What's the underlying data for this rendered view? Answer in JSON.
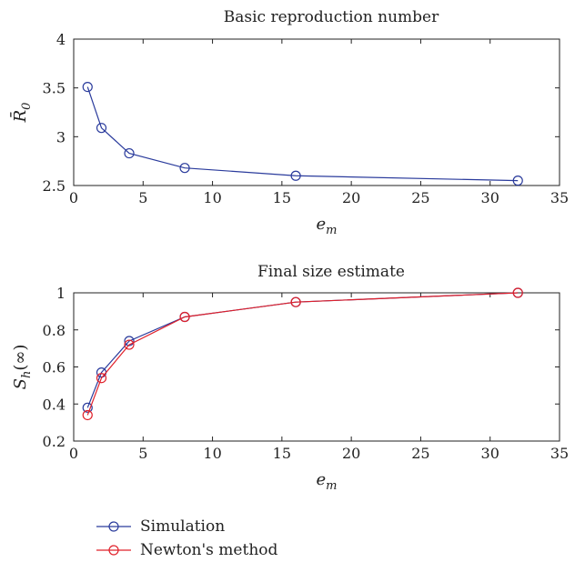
{
  "colors": {
    "simulation": "#2a3b9c",
    "newton": "#e0202a",
    "axis": "#222222"
  },
  "legend": {
    "simulation_label": "Simulation",
    "newton_label": "Newton's method"
  },
  "chart_data": [
    {
      "type": "line",
      "title": "Basic reproduction number",
      "xlabel": "e_m",
      "ylabel": "R̄_0",
      "xlim": [
        0,
        35
      ],
      "ylim": [
        2.5,
        4
      ],
      "xticks": [
        "0",
        "5",
        "10",
        "15",
        "20",
        "25",
        "30",
        "35"
      ],
      "yticks": [
        "2.5",
        "3",
        "3.5",
        "4"
      ],
      "grid": false,
      "x": [
        1,
        2,
        4,
        8,
        16,
        32
      ],
      "series": [
        {
          "name": "Simulation",
          "color": "#2a3b9c",
          "values": [
            3.51,
            3.09,
            2.83,
            2.68,
            2.6,
            2.55
          ]
        }
      ]
    },
    {
      "type": "line",
      "title": "Final size estimate",
      "xlabel": "e_m",
      "ylabel": "S_h(∞)",
      "xlim": [
        0,
        35
      ],
      "ylim": [
        0.2,
        1
      ],
      "xticks": [
        "0",
        "5",
        "10",
        "15",
        "20",
        "25",
        "30",
        "35"
      ],
      "yticks": [
        "0.2",
        "0.4",
        "0.6",
        "0.8",
        "1"
      ],
      "grid": false,
      "x": [
        1,
        2,
        4,
        8,
        16,
        32
      ],
      "legend_position": "below",
      "series": [
        {
          "name": "Simulation",
          "color": "#2a3b9c",
          "values": [
            0.38,
            0.57,
            0.74,
            0.87,
            0.95,
            1.0
          ]
        },
        {
          "name": "Newton's method",
          "color": "#e0202a",
          "values": [
            0.34,
            0.54,
            0.72,
            0.87,
            0.95,
            1.0
          ]
        }
      ]
    }
  ]
}
